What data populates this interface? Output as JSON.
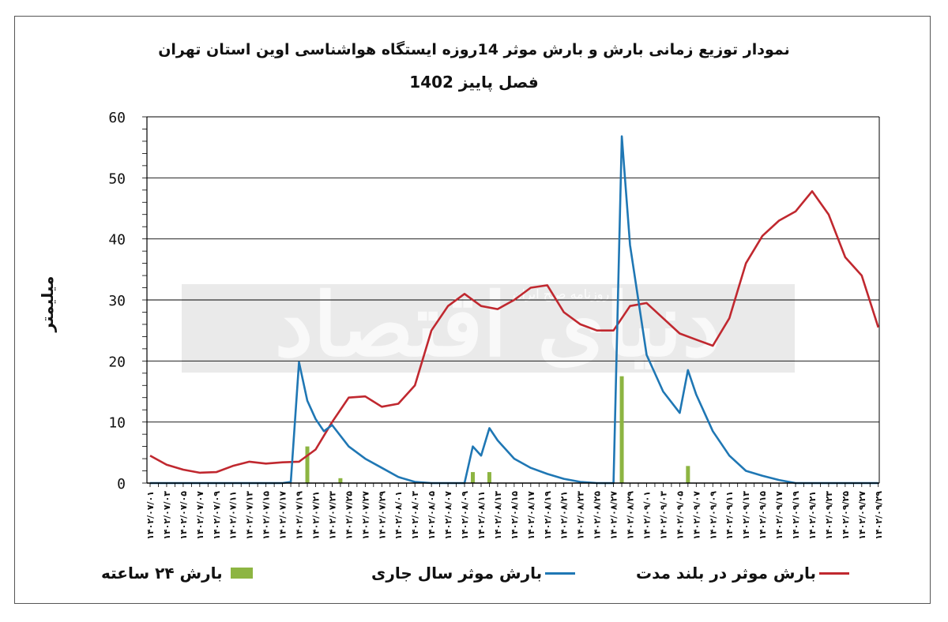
{
  "chart_data": {
    "type": "line",
    "title": "نمودار توزیع زمانی بارش و بارش موثر 14روزه ایستگاه هواشناسی اوین استان تهران",
    "subtitle": "فصل پاییز 1402",
    "xlabel": "",
    "ylabel": "میلیمتر",
    "ylim": [
      0,
      60
    ],
    "yticks": [
      0,
      10,
      20,
      30,
      40,
      50,
      60
    ],
    "grid": "horizontal",
    "legend_position": "bottom",
    "categories": [
      "۱۴۰۲/۰۷/۰۱",
      "۱۴۰۲/۰۷/۰۳",
      "۱۴۰۲/۰۷/۰۵",
      "۱۴۰۲/۰۷/۰۷",
      "۱۴۰۲/۰۷/۰۹",
      "۱۴۰۲/۰۷/۱۱",
      "۱۴۰۲/۰۷/۱۳",
      "۱۴۰۲/۰۷/۱۵",
      "۱۴۰۲/۰۷/۱۷",
      "۱۴۰۲/۰۷/۱۹",
      "۱۴۰۲/۰۷/۲۱",
      "۱۴۰۲/۰۷/۲۳",
      "۱۴۰۲/۰۷/۲۵",
      "۱۴۰۲/۰۷/۲۷",
      "۱۴۰۲/۰۷/۲۹",
      "۱۴۰۲/۰۸/۰۱",
      "۱۴۰۲/۰۸/۰۳",
      "۱۴۰۲/۰۸/۰۵",
      "۱۴۰۲/۰۸/۰۷",
      "۱۴۰۲/۰۸/۰۹",
      "۱۴۰۲/۰۸/۱۱",
      "۱۴۰۲/۰۸/۱۳",
      "۱۴۰۲/۰۸/۱۵",
      "۱۴۰۲/۰۸/۱۷",
      "۱۴۰۲/۰۸/۱۹",
      "۱۴۰۲/۰۸/۲۱",
      "۱۴۰۲/۰۸/۲۳",
      "۱۴۰۲/۰۸/۲۵",
      "۱۴۰۲/۰۸/۲۷",
      "۱۴۰۲/۰۸/۲۹",
      "۱۴۰۲/۰۹/۰۱",
      "۱۴۰۲/۰۹/۰۳",
      "۱۴۰۲/۰۹/۰۵",
      "۱۴۰۲/۰۹/۰۷",
      "۱۴۰۲/۰۹/۰۹",
      "۱۴۰۲/۰۹/۱۱",
      "۱۴۰۲/۰۹/۱۳",
      "۱۴۰۲/۰۹/۱۵",
      "۱۴۰۲/۰۹/۱۷",
      "۱۴۰۲/۰۹/۱۹",
      "۱۴۰۲/۰۹/۲۱",
      "۱۴۰۲/۰۹/۲۳",
      "۱۴۰۲/۰۹/۲۵",
      "۱۴۰۲/۰۹/۲۷",
      "۱۴۰۲/۰۹/۲۹"
    ],
    "series": [
      {
        "name": "بارش موثر در بلند مدت",
        "kind": "line",
        "color": "#c0282f",
        "x": [
          0,
          2,
          4,
          6,
          8,
          10,
          12,
          14,
          16,
          18,
          20,
          22,
          24,
          26,
          28,
          30,
          32,
          34,
          36,
          38,
          40,
          42,
          44,
          46,
          48,
          50,
          52,
          54,
          56,
          58,
          60,
          62,
          64,
          66,
          68,
          70,
          72,
          74,
          76,
          78,
          80,
          82,
          84,
          86,
          88
        ],
        "values": [
          4.5,
          3.0,
          2.2,
          1.7,
          1.8,
          2.8,
          3.5,
          3.2,
          3.4,
          3.5,
          5.5,
          10.0,
          14.0,
          14.2,
          12.5,
          13.0,
          16.0,
          25.0,
          29.0,
          31.0,
          29.0,
          28.5,
          30.0,
          32.0,
          32.4,
          28.0,
          26.0,
          25.0,
          25.0,
          29.0,
          29.5,
          27.0,
          24.5,
          23.5,
          22.5,
          27.0,
          36.0,
          40.5,
          43.0,
          44.5,
          47.8,
          44.0,
          37.0,
          34.0,
          25.5
        ]
      },
      {
        "name": "بارش موثر سال جاری",
        "kind": "line",
        "color": "#1f77b4",
        "x": [
          0,
          16,
          17,
          18,
          19,
          20,
          21,
          22,
          24,
          26,
          28,
          30,
          32,
          34,
          36,
          38,
          39,
          40,
          41,
          42,
          44,
          46,
          48,
          50,
          52,
          54,
          56,
          57,
          58,
          59,
          60,
          62,
          64,
          65,
          66,
          68,
          70,
          72,
          74,
          76,
          78,
          80,
          82,
          84,
          86,
          88
        ],
        "values": [
          0,
          0,
          0.2,
          19.8,
          13.5,
          10.5,
          8.5,
          9.5,
          6.0,
          4.0,
          2.5,
          1.0,
          0.2,
          0,
          0,
          0,
          6.0,
          4.5,
          9.0,
          7.0,
          4.0,
          2.5,
          1.5,
          0.7,
          0.2,
          0,
          0,
          56.8,
          39.0,
          30.0,
          21.0,
          15.0,
          11.5,
          18.5,
          14.5,
          8.5,
          4.5,
          2.0,
          1.2,
          0.5,
          0,
          0,
          0,
          0,
          0,
          0
        ]
      },
      {
        "name": "بارش ۲۴ ساعته",
        "kind": "bar",
        "color": "#8db542",
        "x": [
          19,
          23,
          39,
          41,
          57,
          65
        ],
        "values": [
          6.0,
          0.8,
          1.8,
          1.8,
          17.5,
          2.8
        ]
      }
    ]
  },
  "watermark": {
    "text": "دنیای اقتصاد",
    "subtext": "روزنامه صبح ایران"
  }
}
